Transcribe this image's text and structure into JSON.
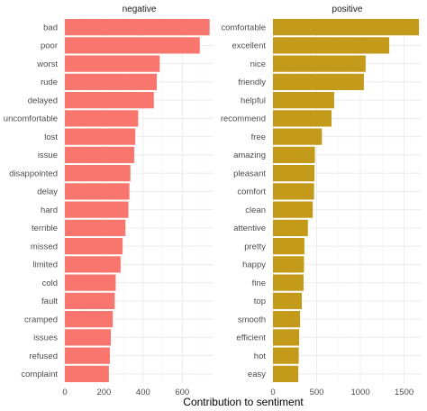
{
  "chart_data": {
    "type": "bar",
    "orientation": "horizontal",
    "xlabel": "Contribution to sentiment",
    "grid": true,
    "panels": [
      {
        "name": "negative",
        "color": "#F8766D",
        "xlim": [
          0,
          760
        ],
        "xticks": [
          0,
          200,
          400,
          600
        ],
        "categories": [
          "bad",
          "poor",
          "worst",
          "rude",
          "delayed",
          "uncomfortable",
          "lost",
          "issue",
          "disappointed",
          "delay",
          "hard",
          "terrible",
          "missed",
          "limited",
          "cold",
          "fault",
          "cramped",
          "issues",
          "refused",
          "complaint"
        ],
        "values": [
          740,
          690,
          485,
          470,
          455,
          375,
          360,
          355,
          335,
          330,
          325,
          310,
          295,
          285,
          260,
          255,
          245,
          235,
          230,
          225
        ]
      },
      {
        "name": "positive",
        "color": "#C49A1A",
        "xlim": [
          0,
          1700
        ],
        "xticks": [
          0,
          500,
          1000,
          1500
        ],
        "categories": [
          "comfortable",
          "excellent",
          "nice",
          "friendly",
          "helpful",
          "recommend",
          "free",
          "amazing",
          "pleasant",
          "comfort",
          "clean",
          "attentive",
          "pretty",
          "happy",
          "fine",
          "top",
          "smooth",
          "efficient",
          "hot",
          "easy"
        ],
        "values": [
          1670,
          1330,
          1060,
          1040,
          700,
          670,
          560,
          480,
          475,
          470,
          455,
          400,
          360,
          355,
          350,
          330,
          310,
          300,
          295,
          290
        ]
      }
    ]
  }
}
